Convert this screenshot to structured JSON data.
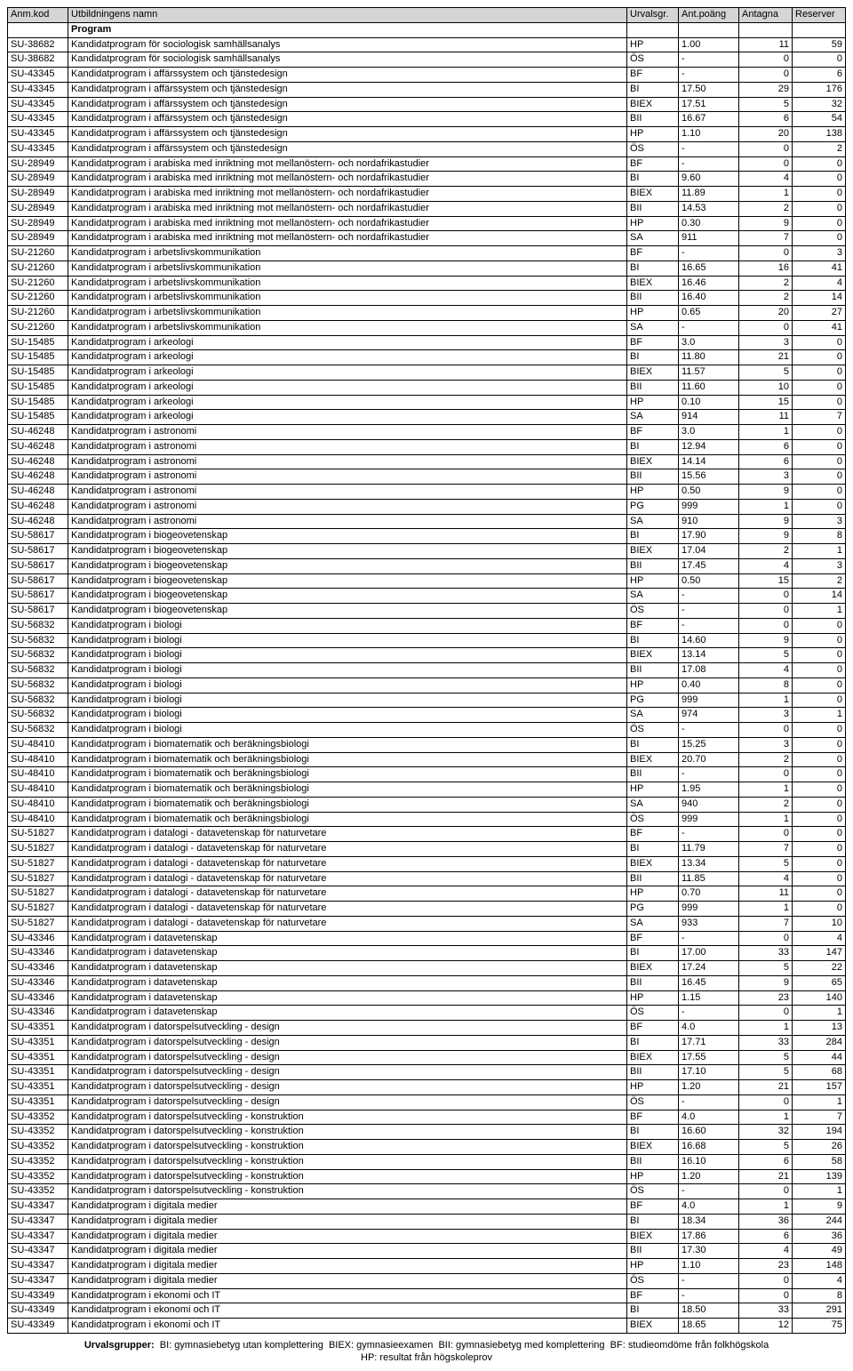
{
  "headers": {
    "code": "Anm.kod",
    "name": "Utbildningens namn",
    "urval": "Urvalsgr.",
    "poang": "Ant.poäng",
    "antagna": "Antagna",
    "reserver": "Reserver"
  },
  "section_label": "Program",
  "footer_line1": "Urvalsgrupper:  BI: gymnasiebetyg utan komplettering  BIEX: gymnasieexamen  BII: gymnasiebetyg med komplettering  BF: studieomdöme från folkhögskola",
  "footer_line2": "HP: resultat från högskoleprov",
  "rows": [
    {
      "code": "SU-38682",
      "name": "Kandidatprogram för sociologisk samhällsanalys",
      "urval": "HP",
      "poang": "1.00",
      "antag": "11",
      "reserv": "59"
    },
    {
      "code": "SU-38682",
      "name": "Kandidatprogram för sociologisk samhällsanalys",
      "urval": "ÖS",
      "poang": "-",
      "antag": "0",
      "reserv": "0"
    },
    {
      "code": "SU-43345",
      "name": "Kandidatprogram i affärssystem och tjänstedesign",
      "urval": "BF",
      "poang": "-",
      "antag": "0",
      "reserv": "6"
    },
    {
      "code": "SU-43345",
      "name": "Kandidatprogram i affärssystem och tjänstedesign",
      "urval": "BI",
      "poang": "17.50",
      "antag": "29",
      "reserv": "176"
    },
    {
      "code": "SU-43345",
      "name": "Kandidatprogram i affärssystem och tjänstedesign",
      "urval": "BIEX",
      "poang": "17.51",
      "antag": "5",
      "reserv": "32"
    },
    {
      "code": "SU-43345",
      "name": "Kandidatprogram i affärssystem och tjänstedesign",
      "urval": "BII",
      "poang": "16.67",
      "antag": "6",
      "reserv": "54"
    },
    {
      "code": "SU-43345",
      "name": "Kandidatprogram i affärssystem och tjänstedesign",
      "urval": "HP",
      "poang": "1.10",
      "antag": "20",
      "reserv": "138"
    },
    {
      "code": "SU-43345",
      "name": "Kandidatprogram i affärssystem och tjänstedesign",
      "urval": "ÖS",
      "poang": "-",
      "antag": "0",
      "reserv": "2"
    },
    {
      "code": "SU-28949",
      "name": "Kandidatprogram i arabiska med inriktning mot mellanöstern- och nordafrikastudier",
      "urval": "BF",
      "poang": "-",
      "antag": "0",
      "reserv": "0"
    },
    {
      "code": "SU-28949",
      "name": "Kandidatprogram i arabiska med inriktning mot mellanöstern- och nordafrikastudier",
      "urval": "BI",
      "poang": "9.60",
      "antag": "4",
      "reserv": "0"
    },
    {
      "code": "SU-28949",
      "name": "Kandidatprogram i arabiska med inriktning mot mellanöstern- och nordafrikastudier",
      "urval": "BIEX",
      "poang": "11.89",
      "antag": "1",
      "reserv": "0"
    },
    {
      "code": "SU-28949",
      "name": "Kandidatprogram i arabiska med inriktning mot mellanöstern- och nordafrikastudier",
      "urval": "BII",
      "poang": "14.53",
      "antag": "2",
      "reserv": "0"
    },
    {
      "code": "SU-28949",
      "name": "Kandidatprogram i arabiska med inriktning mot mellanöstern- och nordafrikastudier",
      "urval": "HP",
      "poang": "0.30",
      "antag": "9",
      "reserv": "0"
    },
    {
      "code": "SU-28949",
      "name": "Kandidatprogram i arabiska med inriktning mot mellanöstern- och nordafrikastudier",
      "urval": "SA",
      "poang": "911",
      "antag": "7",
      "reserv": "0"
    },
    {
      "code": "SU-21260",
      "name": "Kandidatprogram i arbetslivskommunikation",
      "urval": "BF",
      "poang": "-",
      "antag": "0",
      "reserv": "3"
    },
    {
      "code": "SU-21260",
      "name": "Kandidatprogram i arbetslivskommunikation",
      "urval": "BI",
      "poang": "16.65",
      "antag": "16",
      "reserv": "41"
    },
    {
      "code": "SU-21260",
      "name": "Kandidatprogram i arbetslivskommunikation",
      "urval": "BIEX",
      "poang": "16.46",
      "antag": "2",
      "reserv": "4"
    },
    {
      "code": "SU-21260",
      "name": "Kandidatprogram i arbetslivskommunikation",
      "urval": "BII",
      "poang": "16.40",
      "antag": "2",
      "reserv": "14"
    },
    {
      "code": "SU-21260",
      "name": "Kandidatprogram i arbetslivskommunikation",
      "urval": "HP",
      "poang": "0.65",
      "antag": "20",
      "reserv": "27"
    },
    {
      "code": "SU-21260",
      "name": "Kandidatprogram i arbetslivskommunikation",
      "urval": "SA",
      "poang": "-",
      "antag": "0",
      "reserv": "41"
    },
    {
      "code": "SU-15485",
      "name": "Kandidatprogram i arkeologi",
      "urval": "BF",
      "poang": "3.0",
      "antag": "3",
      "reserv": "0"
    },
    {
      "code": "SU-15485",
      "name": "Kandidatprogram i arkeologi",
      "urval": "BI",
      "poang": "11.80",
      "antag": "21",
      "reserv": "0"
    },
    {
      "code": "SU-15485",
      "name": "Kandidatprogram i arkeologi",
      "urval": "BIEX",
      "poang": "11.57",
      "antag": "5",
      "reserv": "0"
    },
    {
      "code": "SU-15485",
      "name": "Kandidatprogram i arkeologi",
      "urval": "BII",
      "poang": "11.60",
      "antag": "10",
      "reserv": "0"
    },
    {
      "code": "SU-15485",
      "name": "Kandidatprogram i arkeologi",
      "urval": "HP",
      "poang": "0.10",
      "antag": "15",
      "reserv": "0"
    },
    {
      "code": "SU-15485",
      "name": "Kandidatprogram i arkeologi",
      "urval": "SA",
      "poang": "914",
      "antag": "11",
      "reserv": "7"
    },
    {
      "code": "SU-46248",
      "name": "Kandidatprogram i astronomi",
      "urval": "BF",
      "poang": "3.0",
      "antag": "1",
      "reserv": "0"
    },
    {
      "code": "SU-46248",
      "name": "Kandidatprogram i astronomi",
      "urval": "BI",
      "poang": "12.94",
      "antag": "6",
      "reserv": "0"
    },
    {
      "code": "SU-46248",
      "name": "Kandidatprogram i astronomi",
      "urval": "BIEX",
      "poang": "14.14",
      "antag": "6",
      "reserv": "0"
    },
    {
      "code": "SU-46248",
      "name": "Kandidatprogram i astronomi",
      "urval": "BII",
      "poang": "15.56",
      "antag": "3",
      "reserv": "0"
    },
    {
      "code": "SU-46248",
      "name": "Kandidatprogram i astronomi",
      "urval": "HP",
      "poang": "0.50",
      "antag": "9",
      "reserv": "0"
    },
    {
      "code": "SU-46248",
      "name": "Kandidatprogram i astronomi",
      "urval": "PG",
      "poang": "999",
      "antag": "1",
      "reserv": "0"
    },
    {
      "code": "SU-46248",
      "name": "Kandidatprogram i astronomi",
      "urval": "SA",
      "poang": "910",
      "antag": "9",
      "reserv": "3"
    },
    {
      "code": "SU-58617",
      "name": "Kandidatprogram i biogeovetenskap",
      "urval": "BI",
      "poang": "17.90",
      "antag": "9",
      "reserv": "8"
    },
    {
      "code": "SU-58617",
      "name": "Kandidatprogram i biogeovetenskap",
      "urval": "BIEX",
      "poang": "17.04",
      "antag": "2",
      "reserv": "1"
    },
    {
      "code": "SU-58617",
      "name": "Kandidatprogram i biogeovetenskap",
      "urval": "BII",
      "poang": "17.45",
      "antag": "4",
      "reserv": "3"
    },
    {
      "code": "SU-58617",
      "name": "Kandidatprogram i biogeovetenskap",
      "urval": "HP",
      "poang": "0.50",
      "antag": "15",
      "reserv": "2"
    },
    {
      "code": "SU-58617",
      "name": "Kandidatprogram i biogeovetenskap",
      "urval": "SA",
      "poang": "-",
      "antag": "0",
      "reserv": "14"
    },
    {
      "code": "SU-58617",
      "name": "Kandidatprogram i biogeovetenskap",
      "urval": "ÖS",
      "poang": "-",
      "antag": "0",
      "reserv": "1"
    },
    {
      "code": "SU-56832",
      "name": "Kandidatprogram i biologi",
      "urval": "BF",
      "poang": "-",
      "antag": "0",
      "reserv": "0"
    },
    {
      "code": "SU-56832",
      "name": "Kandidatprogram i biologi",
      "urval": "BI",
      "poang": "14.60",
      "antag": "9",
      "reserv": "0"
    },
    {
      "code": "SU-56832",
      "name": "Kandidatprogram i biologi",
      "urval": "BIEX",
      "poang": "13.14",
      "antag": "5",
      "reserv": "0"
    },
    {
      "code": "SU-56832",
      "name": "Kandidatprogram i biologi",
      "urval": "BII",
      "poang": "17.08",
      "antag": "4",
      "reserv": "0"
    },
    {
      "code": "SU-56832",
      "name": "Kandidatprogram i biologi",
      "urval": "HP",
      "poang": "0.40",
      "antag": "8",
      "reserv": "0"
    },
    {
      "code": "SU-56832",
      "name": "Kandidatprogram i biologi",
      "urval": "PG",
      "poang": "999",
      "antag": "1",
      "reserv": "0"
    },
    {
      "code": "SU-56832",
      "name": "Kandidatprogram i biologi",
      "urval": "SA",
      "poang": "974",
      "antag": "3",
      "reserv": "1"
    },
    {
      "code": "SU-56832",
      "name": "Kandidatprogram i biologi",
      "urval": "ÖS",
      "poang": "-",
      "antag": "0",
      "reserv": "0"
    },
    {
      "code": "SU-48410",
      "name": "Kandidatprogram i biomatematik och beräkningsbiologi",
      "urval": "BI",
      "poang": "15.25",
      "antag": "3",
      "reserv": "0"
    },
    {
      "code": "SU-48410",
      "name": "Kandidatprogram i biomatematik och beräkningsbiologi",
      "urval": "BIEX",
      "poang": "20.70",
      "antag": "2",
      "reserv": "0"
    },
    {
      "code": "SU-48410",
      "name": "Kandidatprogram i biomatematik och beräkningsbiologi",
      "urval": "BII",
      "poang": "-",
      "antag": "0",
      "reserv": "0"
    },
    {
      "code": "SU-48410",
      "name": "Kandidatprogram i biomatematik och beräkningsbiologi",
      "urval": "HP",
      "poang": "1.95",
      "antag": "1",
      "reserv": "0"
    },
    {
      "code": "SU-48410",
      "name": "Kandidatprogram i biomatematik och beräkningsbiologi",
      "urval": "SA",
      "poang": "940",
      "antag": "2",
      "reserv": "0"
    },
    {
      "code": "SU-48410",
      "name": "Kandidatprogram i biomatematik och beräkningsbiologi",
      "urval": "ÖS",
      "poang": "999",
      "antag": "1",
      "reserv": "0"
    },
    {
      "code": "SU-51827",
      "name": "Kandidatprogram i datalogi - datavetenskap för naturvetare",
      "urval": "BF",
      "poang": "-",
      "antag": "0",
      "reserv": "0"
    },
    {
      "code": "SU-51827",
      "name": "Kandidatprogram i datalogi - datavetenskap för naturvetare",
      "urval": "BI",
      "poang": "11.79",
      "antag": "7",
      "reserv": "0"
    },
    {
      "code": "SU-51827",
      "name": "Kandidatprogram i datalogi - datavetenskap för naturvetare",
      "urval": "BIEX",
      "poang": "13.34",
      "antag": "5",
      "reserv": "0"
    },
    {
      "code": "SU-51827",
      "name": "Kandidatprogram i datalogi - datavetenskap för naturvetare",
      "urval": "BII",
      "poang": "11.85",
      "antag": "4",
      "reserv": "0"
    },
    {
      "code": "SU-51827",
      "name": "Kandidatprogram i datalogi - datavetenskap för naturvetare",
      "urval": "HP",
      "poang": "0.70",
      "antag": "11",
      "reserv": "0"
    },
    {
      "code": "SU-51827",
      "name": "Kandidatprogram i datalogi - datavetenskap för naturvetare",
      "urval": "PG",
      "poang": "999",
      "antag": "1",
      "reserv": "0"
    },
    {
      "code": "SU-51827",
      "name": "Kandidatprogram i datalogi - datavetenskap för naturvetare",
      "urval": "SA",
      "poang": "933",
      "antag": "7",
      "reserv": "10"
    },
    {
      "code": "SU-43346",
      "name": "Kandidatprogram i datavetenskap",
      "urval": "BF",
      "poang": "-",
      "antag": "0",
      "reserv": "4"
    },
    {
      "code": "SU-43346",
      "name": "Kandidatprogram i datavetenskap",
      "urval": "BI",
      "poang": "17.00",
      "antag": "33",
      "reserv": "147"
    },
    {
      "code": "SU-43346",
      "name": "Kandidatprogram i datavetenskap",
      "urval": "BIEX",
      "poang": "17.24",
      "antag": "5",
      "reserv": "22"
    },
    {
      "code": "SU-43346",
      "name": "Kandidatprogram i datavetenskap",
      "urval": "BII",
      "poang": "16.45",
      "antag": "9",
      "reserv": "65"
    },
    {
      "code": "SU-43346",
      "name": "Kandidatprogram i datavetenskap",
      "urval": "HP",
      "poang": "1.15",
      "antag": "23",
      "reserv": "140"
    },
    {
      "code": "SU-43346",
      "name": "Kandidatprogram i datavetenskap",
      "urval": "ÖS",
      "poang": "-",
      "antag": "0",
      "reserv": "1"
    },
    {
      "code": "SU-43351",
      "name": "Kandidatprogram i datorspelsutveckling - design",
      "urval": "BF",
      "poang": "4.0",
      "antag": "1",
      "reserv": "13"
    },
    {
      "code": "SU-43351",
      "name": "Kandidatprogram i datorspelsutveckling - design",
      "urval": "BI",
      "poang": "17.71",
      "antag": "33",
      "reserv": "284"
    },
    {
      "code": "SU-43351",
      "name": "Kandidatprogram i datorspelsutveckling - design",
      "urval": "BIEX",
      "poang": "17.55",
      "antag": "5",
      "reserv": "44"
    },
    {
      "code": "SU-43351",
      "name": "Kandidatprogram i datorspelsutveckling - design",
      "urval": "BII",
      "poang": "17.10",
      "antag": "5",
      "reserv": "68"
    },
    {
      "code": "SU-43351",
      "name": "Kandidatprogram i datorspelsutveckling - design",
      "urval": "HP",
      "poang": "1.20",
      "antag": "21",
      "reserv": "157"
    },
    {
      "code": "SU-43351",
      "name": "Kandidatprogram i datorspelsutveckling - design",
      "urval": "ÖS",
      "poang": "-",
      "antag": "0",
      "reserv": "1"
    },
    {
      "code": "SU-43352",
      "name": "Kandidatprogram i datorspelsutveckling - konstruktion",
      "urval": "BF",
      "poang": "4.0",
      "antag": "1",
      "reserv": "7"
    },
    {
      "code": "SU-43352",
      "name": "Kandidatprogram i datorspelsutveckling - konstruktion",
      "urval": "BI",
      "poang": "16.60",
      "antag": "32",
      "reserv": "194"
    },
    {
      "code": "SU-43352",
      "name": "Kandidatprogram i datorspelsutveckling - konstruktion",
      "urval": "BIEX",
      "poang": "16.68",
      "antag": "5",
      "reserv": "26"
    },
    {
      "code": "SU-43352",
      "name": "Kandidatprogram i datorspelsutveckling - konstruktion",
      "urval": "BII",
      "poang": "16.10",
      "antag": "6",
      "reserv": "58"
    },
    {
      "code": "SU-43352",
      "name": "Kandidatprogram i datorspelsutveckling - konstruktion",
      "urval": "HP",
      "poang": "1.20",
      "antag": "21",
      "reserv": "139"
    },
    {
      "code": "SU-43352",
      "name": "Kandidatprogram i datorspelsutveckling - konstruktion",
      "urval": "ÖS",
      "poang": "-",
      "antag": "0",
      "reserv": "1"
    },
    {
      "code": "SU-43347",
      "name": "Kandidatprogram i digitala medier",
      "urval": "BF",
      "poang": "4.0",
      "antag": "1",
      "reserv": "9"
    },
    {
      "code": "SU-43347",
      "name": "Kandidatprogram i digitala medier",
      "urval": "BI",
      "poang": "18.34",
      "antag": "36",
      "reserv": "244"
    },
    {
      "code": "SU-43347",
      "name": "Kandidatprogram i digitala medier",
      "urval": "BIEX",
      "poang": "17.86",
      "antag": "6",
      "reserv": "36"
    },
    {
      "code": "SU-43347",
      "name": "Kandidatprogram i digitala medier",
      "urval": "BII",
      "poang": "17.30",
      "antag": "4",
      "reserv": "49"
    },
    {
      "code": "SU-43347",
      "name": "Kandidatprogram i digitala medier",
      "urval": "HP",
      "poang": "1.10",
      "antag": "23",
      "reserv": "148"
    },
    {
      "code": "SU-43347",
      "name": "Kandidatprogram i digitala medier",
      "urval": "ÖS",
      "poang": "-",
      "antag": "0",
      "reserv": "4"
    },
    {
      "code": "SU-43349",
      "name": "Kandidatprogram i ekonomi och IT",
      "urval": "BF",
      "poang": "-",
      "antag": "0",
      "reserv": "8"
    },
    {
      "code": "SU-43349",
      "name": "Kandidatprogram i ekonomi och IT",
      "urval": "BI",
      "poang": "18.50",
      "antag": "33",
      "reserv": "291"
    },
    {
      "code": "SU-43349",
      "name": "Kandidatprogram i ekonomi och IT",
      "urval": "BIEX",
      "poang": "18.65",
      "antag": "12",
      "reserv": "75"
    }
  ]
}
